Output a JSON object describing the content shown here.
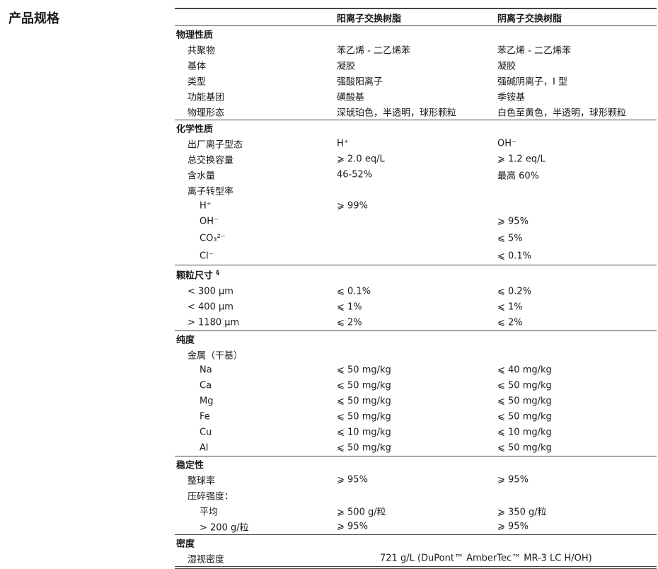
{
  "title": "产品规格",
  "header": {
    "col1": "阳离子交换树脂",
    "col2": "阴离子交换树脂"
  },
  "sections": [
    {
      "label": "物理性质",
      "rows": [
        {
          "label": "共聚物",
          "level": 1,
          "c1": "苯乙烯 - 二乙烯苯",
          "c2": "苯乙烯 - 二乙烯苯"
        },
        {
          "label": "基体",
          "level": 1,
          "c1": "凝胶",
          "c2": "凝胶"
        },
        {
          "label": "类型",
          "level": 1,
          "c1": "强酸阳离子",
          "c2": "强碱阴离子，I 型"
        },
        {
          "label": "功能基团",
          "level": 1,
          "c1": "磺酸基",
          "c2": "季铵基"
        },
        {
          "label": "物理形态",
          "level": 1,
          "c1": "深琥珀色，半透明，球形颗粒",
          "c2": "白色至黄色，半透明，球形颗粒"
        }
      ]
    },
    {
      "label": "化学性质",
      "rows": [
        {
          "label": "出厂离子型态",
          "level": 1,
          "c1": "H⁺",
          "c2": "OH⁻"
        },
        {
          "label": "总交换容量",
          "level": 1,
          "c1": "⩾ 2.0 eq/L",
          "c2": "⩾ 1.2 eq/L"
        },
        {
          "label": "含水量",
          "level": 1,
          "c1": "46-52%",
          "c2": "最高 60%"
        },
        {
          "label": "离子转型率",
          "level": 1,
          "c1": "",
          "c2": ""
        },
        {
          "label": "H⁺",
          "level": 2,
          "c1": "⩾ 99%",
          "c2": ""
        },
        {
          "label": "OH⁻",
          "level": 2,
          "c1": "",
          "c2": "⩾ 95%"
        },
        {
          "label": "CO₃²⁻",
          "level": 2,
          "c1": "",
          "c2": "⩽ 5%"
        },
        {
          "label": "Cl⁻",
          "level": 2,
          "c1": "",
          "c2": "⩽ 0.1%"
        }
      ]
    },
    {
      "label": "颗粒尺寸",
      "footnote": "§",
      "rows": [
        {
          "label": "< 300 µm",
          "level": 1,
          "c1": "⩽ 0.1%",
          "c2": "⩽ 0.2%"
        },
        {
          "label": "< 400 µm",
          "level": 1,
          "c1": "⩽ 1%",
          "c2": "⩽ 1%"
        },
        {
          "label": "> 1180 µm",
          "level": 1,
          "c1": "⩽ 2%",
          "c2": "⩽ 2%"
        }
      ]
    },
    {
      "label": "纯度",
      "rows": [
        {
          "label": "金属（干基）",
          "level": 1,
          "c1": "",
          "c2": ""
        },
        {
          "label": "Na",
          "level": 2,
          "c1": "⩽ 50 mg/kg",
          "c2": "⩽ 40 mg/kg"
        },
        {
          "label": "Ca",
          "level": 2,
          "c1": "⩽ 50 mg/kg",
          "c2": "⩽ 50 mg/kg"
        },
        {
          "label": "Mg",
          "level": 2,
          "c1": "⩽ 50 mg/kg",
          "c2": "⩽ 50 mg/kg"
        },
        {
          "label": "Fe",
          "level": 2,
          "c1": "⩽ 50 mg/kg",
          "c2": "⩽ 50 mg/kg"
        },
        {
          "label": "Cu",
          "level": 2,
          "c1": "⩽ 10 mg/kg",
          "c2": "⩽ 10 mg/kg"
        },
        {
          "label": "Al",
          "level": 2,
          "c1": "⩽ 50 mg/kg",
          "c2": "⩽ 50 mg/kg"
        }
      ]
    },
    {
      "label": "稳定性",
      "rows": [
        {
          "label": "整球率",
          "level": 1,
          "c1": "⩾ 95%",
          "c2": "⩾ 95%"
        },
        {
          "label": "压碎强度：",
          "level": 1,
          "c1": "",
          "c2": ""
        },
        {
          "label": "平均",
          "level": 2,
          "c1": "⩾ 500 g/粒",
          "c2": "⩾ 350 g/粒"
        },
        {
          "label": "> 200 g/粒",
          "level": 2,
          "c1": "⩾ 95%",
          "c2": "⩾ 95%"
        }
      ]
    },
    {
      "label": "密度",
      "rows": [
        {
          "label": "湿视密度",
          "level": 1,
          "span": "721 g/L (DuPont™ AmberTec™ MR-3 LC H/OH)"
        }
      ]
    }
  ]
}
